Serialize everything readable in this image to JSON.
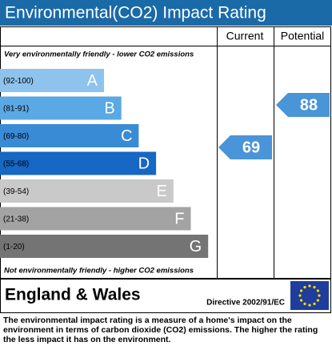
{
  "title": "Environmental(CO2) Impact Rating",
  "columns": {
    "current": "Current",
    "potential": "Potential"
  },
  "top_note": "Very environmentally friendly - lower CO2 emissions",
  "bottom_note": "Not environmentally friendly - higher CO2 emissions",
  "bands": [
    {
      "range": "(92-100)",
      "letter": "A",
      "color": "#8dc3ec"
    },
    {
      "range": "(81-91)",
      "letter": "B",
      "color": "#5aa8e4"
    },
    {
      "range": "(69-80)",
      "letter": "C",
      "color": "#3a8bd6"
    },
    {
      "range": "(55-68)",
      "letter": "D",
      "color": "#1767c4"
    },
    {
      "range": "(39-54)",
      "letter": "E",
      "color": "#c9c9c9"
    },
    {
      "range": "(21-38)",
      "letter": "F",
      "color": "#a3a3a3"
    },
    {
      "range": "(1-20)",
      "letter": "G",
      "color": "#747474"
    }
  ],
  "current": 69,
  "potential": 88,
  "arrow_color": "#4a94d8",
  "region": "England & Wales",
  "directive": "Directive 2002/91/EC",
  "description": "The environmental impact rating is a measure of a home's impact on the environment in terms of carbon dioxide (CO2) emissions. The higher the rating the less impact it has on the environment."
}
